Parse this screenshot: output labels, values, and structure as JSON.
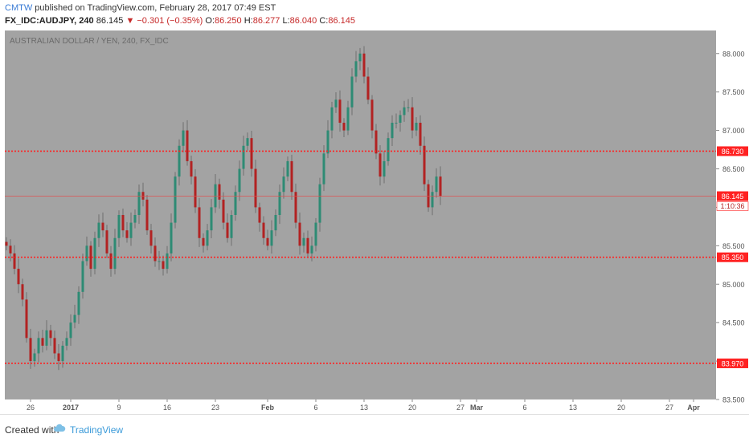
{
  "header": {
    "author": "CMTW",
    "published_text": "published on TradingView.com, February 28, 2017 07:49 EST",
    "symbol": "FX_IDC:AUDJPY, 240",
    "last": "86.145",
    "change": "▼ −0.301 (−0.35%)",
    "o_label": "O:",
    "o_value": "86.250",
    "h_label": "H:",
    "h_value": "86.277",
    "l_label": "L:",
    "l_value": "86.040",
    "c_label": "C:",
    "c_value": "86.145"
  },
  "footer": {
    "created_with": "Created with",
    "brand": "TradingView"
  },
  "chart_data": {
    "type": "candlestick",
    "watermark": "AUSTRALIAN DOLLAR / YEN, 240, FX_IDC",
    "ylim": [
      83.5,
      88.3
    ],
    "y_ticks": [
      {
        "value": 83.5,
        "label": "83.500"
      },
      {
        "value": 84.0,
        "label": "84.000"
      },
      {
        "value": 84.5,
        "label": "84.500"
      },
      {
        "value": 85.0,
        "label": "85.000"
      },
      {
        "value": 85.5,
        "label": "85.500"
      },
      {
        "value": 86.0,
        "label": "86.000"
      },
      {
        "value": 86.5,
        "label": "86.500"
      },
      {
        "value": 87.0,
        "label": "87.000"
      },
      {
        "value": 87.5,
        "label": "87.500"
      },
      {
        "value": 88.0,
        "label": "88.000"
      }
    ],
    "x_ticks": [
      {
        "label": "26",
        "bar": 6
      },
      {
        "label": "2017",
        "bar": 16
      },
      {
        "label": "9",
        "bar": 28
      },
      {
        "label": "16",
        "bar": 40
      },
      {
        "label": "23",
        "bar": 52
      },
      {
        "label": "Feb",
        "bar": 65
      },
      {
        "label": "6",
        "bar": 77
      },
      {
        "label": "13",
        "bar": 89
      },
      {
        "label": "20",
        "bar": 101
      },
      {
        "label": "27",
        "bar": 113
      },
      {
        "label": "Mar",
        "bar": 117
      },
      {
        "label": "6",
        "bar": 129
      },
      {
        "label": "13",
        "bar": 141
      },
      {
        "label": "20",
        "bar": 153
      },
      {
        "label": "27",
        "bar": 165
      },
      {
        "label": "Apr",
        "bar": 171
      }
    ],
    "x_bold_labels": [
      "2017",
      "Feb",
      "Mar",
      "Apr"
    ],
    "horizontal_levels": [
      {
        "value": 86.73,
        "label": "86.730",
        "style": "dotted"
      },
      {
        "value": 85.35,
        "label": "85.350",
        "style": "dotted"
      },
      {
        "value": 83.97,
        "label": "83.970",
        "style": "dotted"
      },
      {
        "value": 86.145,
        "label": "86.145",
        "style": "solid-thin"
      }
    ],
    "countdown_label": "1:10:36",
    "close_series": [
      85.5,
      85.4,
      85.2,
      85.0,
      84.8,
      84.3,
      84.0,
      84.1,
      84.3,
      84.2,
      84.4,
      84.3,
      84.1,
      84.0,
      84.2,
      84.3,
      84.5,
      84.6,
      84.9,
      85.3,
      85.5,
      85.2,
      85.6,
      85.8,
      85.7,
      85.4,
      85.2,
      85.6,
      85.9,
      85.7,
      85.6,
      85.8,
      85.9,
      86.2,
      86.1,
      85.7,
      85.5,
      85.3,
      85.3,
      85.2,
      85.4,
      85.8,
      86.4,
      86.8,
      87.0,
      86.6,
      86.4,
      86.0,
      85.6,
      85.5,
      85.7,
      86.0,
      86.3,
      86.1,
      85.8,
      85.6,
      85.9,
      86.2,
      86.5,
      86.8,
      86.9,
      86.5,
      86.0,
      85.8,
      85.6,
      85.5,
      85.7,
      85.9,
      86.2,
      86.4,
      86.6,
      86.2,
      85.8,
      85.5,
      85.6,
      85.4,
      85.5,
      85.8,
      86.3,
      86.7,
      87.0,
      87.3,
      87.4,
      87.1,
      87.0,
      87.3,
      87.7,
      87.9,
      88.0,
      87.7,
      87.4,
      87.0,
      86.7,
      86.4,
      86.6,
      86.9,
      87.1,
      87.1,
      87.2,
      87.3,
      87.3,
      87.0,
      87.1,
      86.8,
      86.3,
      86.0,
      86.2,
      86.4,
      86.145
    ],
    "source_units_note": "close prices, JPY per AUD, 240-minute bars"
  },
  "colors": {
    "plot_bg": "#a3a3a3",
    "axis_bg": "#ffffff",
    "up": "#2e8b74",
    "down": "#b22222",
    "level": "#ff2222",
    "price_line": "#e05050"
  }
}
